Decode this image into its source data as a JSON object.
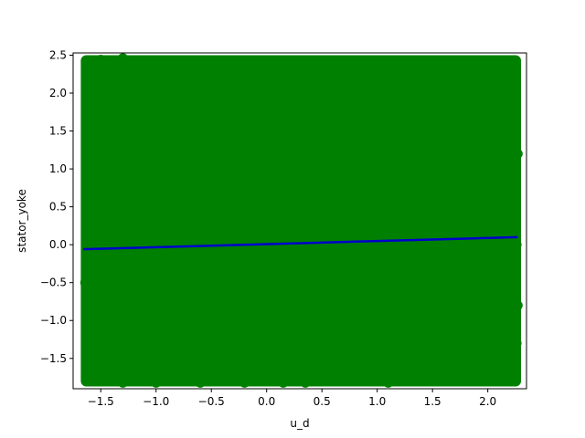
{
  "chart_data": {
    "type": "scatter",
    "xlabel": "u_d",
    "ylabel": "stator_yoke",
    "xlim": [
      -1.75,
      2.35
    ],
    "ylim": [
      -1.9,
      2.53
    ],
    "xticks": [
      -1.5,
      -1.0,
      -0.5,
      0.0,
      0.5,
      1.0,
      1.5,
      2.0
    ],
    "xtick_labels": [
      "−1.5",
      "−1.0",
      "−0.5",
      "0.0",
      "0.5",
      "1.0",
      "1.5",
      "2.0"
    ],
    "yticks": [
      -1.5,
      -1.0,
      -0.5,
      0.0,
      0.5,
      1.0,
      1.5,
      2.0,
      2.5
    ],
    "ytick_labels": [
      "−1.5",
      "−1.0",
      "−0.5",
      "0.0",
      "0.5",
      "1.0",
      "1.5",
      "2.0",
      "2.5"
    ],
    "grid": false,
    "series": [
      {
        "kind": "scatter",
        "color": "#008000",
        "x_range": [
          -1.66,
          2.28
        ],
        "y_range": [
          -1.84,
          2.47
        ],
        "points": [
          [
            -1.62,
            2.35
          ],
          [
            -1.5,
            2.44
          ],
          [
            -1.3,
            2.46
          ],
          [
            -1.05,
            2.43
          ],
          [
            -0.7,
            2.38
          ],
          [
            -0.3,
            2.38
          ],
          [
            0.0,
            2.38
          ],
          [
            0.3,
            2.38
          ],
          [
            0.6,
            2.33
          ],
          [
            0.9,
            2.33
          ],
          [
            1.2,
            2.38
          ],
          [
            1.45,
            2.43
          ],
          [
            1.7,
            2.43
          ],
          [
            1.95,
            2.38
          ],
          [
            2.2,
            2.35
          ],
          [
            -1.62,
            -1.55
          ],
          [
            -1.55,
            -1.75
          ],
          [
            -1.3,
            -1.82
          ],
          [
            -1.0,
            -1.82
          ],
          [
            -0.6,
            -1.82
          ],
          [
            -0.2,
            -1.82
          ],
          [
            0.15,
            -1.82
          ],
          [
            0.35,
            -1.82
          ],
          [
            0.8,
            -1.78
          ],
          [
            1.1,
            -1.82
          ],
          [
            1.4,
            -1.78
          ],
          [
            1.7,
            -1.75
          ],
          [
            1.95,
            -1.72
          ],
          [
            2.15,
            -1.28
          ],
          [
            2.26,
            -1.3
          ],
          [
            -1.63,
            0.9
          ],
          [
            -1.64,
            -0.5
          ],
          [
            2.27,
            1.2
          ],
          [
            2.26,
            0.0
          ],
          [
            2.27,
            -0.8
          ],
          [
            -1.2,
            -1.6
          ],
          [
            1.5,
            -1.55
          ],
          [
            0.5,
            -1.5
          ],
          [
            -0.8,
            -1.55
          ],
          [
            2.0,
            -1.5
          ],
          [
            -1.2,
            0.0
          ],
          [
            -0.6,
            1.0
          ],
          [
            0.0,
            -1.0
          ],
          [
            0.5,
            1.8
          ],
          [
            1.0,
            -0.5
          ],
          [
            1.5,
            0.6
          ],
          [
            2.0,
            1.6
          ],
          [
            -1.4,
            1.5
          ],
          [
            0.8,
            0.2
          ],
          [
            1.8,
            -1.2
          ]
        ]
      },
      {
        "kind": "line",
        "color": "#0000cc",
        "x": [
          -1.66,
          2.27
        ],
        "y": [
          -0.06,
          0.1
        ]
      }
    ]
  }
}
